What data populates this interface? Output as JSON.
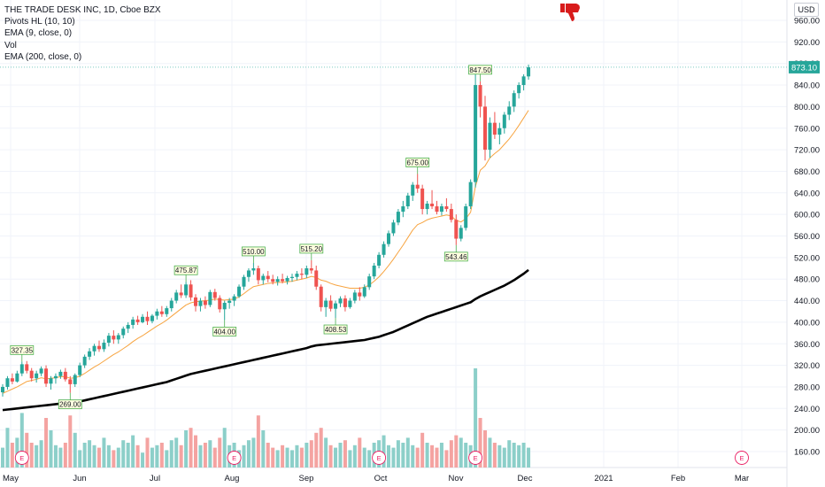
{
  "header": {
    "title": "THE TRADE DESK INC, 1D, Cboe BZX",
    "indicators": [
      "Pivots HL (10, 10)",
      "EMA (9, close, 0)",
      "Vol",
      "EMA (200, close, 0)"
    ],
    "currency": "USD"
  },
  "chart_data": {
    "type": "candlestick",
    "y_ticks": [
      "960.00",
      "920.00",
      "880.00",
      "840.00",
      "800.00",
      "760.00",
      "720.00",
      "680.00",
      "640.00",
      "600.00",
      "560.00",
      "520.00",
      "480.00",
      "440.00",
      "400.00",
      "360.00",
      "320.00",
      "280.00",
      "240.00",
      "200.00",
      "160.00"
    ],
    "ylim": [
      150,
      975
    ],
    "x_ticks": [
      "May",
      "Jun",
      "Jul",
      "Aug",
      "Sep",
      "Oct",
      "Nov",
      "Dec",
      "2021",
      "Feb",
      "Mar"
    ],
    "last_price": "873.10",
    "pivot_labels": [
      "327.35",
      "269.00",
      "475.87",
      "404.00",
      "510.00",
      "515.20",
      "408.53",
      "675.00",
      "543.46",
      "847.50"
    ],
    "earnings_marker": "E",
    "colors": {
      "up": "#26a69a",
      "down": "#ef5350",
      "ema9": "#f7a440",
      "ema200": "#000000",
      "vol_up": "#8ccfc9",
      "vol_down": "#f4a3a1"
    },
    "ohlc": [
      [
        270,
        285,
        262,
        280
      ],
      [
        280,
        300,
        275,
        296
      ],
      [
        296,
        305,
        285,
        290
      ],
      [
        290,
        310,
        288,
        305
      ],
      [
        305,
        327,
        300,
        322
      ],
      [
        322,
        328,
        305,
        310
      ],
      [
        310,
        315,
        290,
        296
      ],
      [
        296,
        310,
        288,
        305
      ],
      [
        305,
        318,
        300,
        314
      ],
      [
        314,
        320,
        280,
        286
      ],
      [
        286,
        300,
        275,
        296
      ],
      [
        296,
        305,
        286,
        300
      ],
      [
        300,
        312,
        295,
        308
      ],
      [
        308,
        315,
        290,
        294
      ],
      [
        294,
        300,
        269,
        285
      ],
      [
        285,
        305,
        280,
        302
      ],
      [
        302,
        325,
        298,
        320
      ],
      [
        320,
        340,
        315,
        336
      ],
      [
        336,
        352,
        330,
        346
      ],
      [
        346,
        360,
        338,
        356
      ],
      [
        356,
        366,
        345,
        350
      ],
      [
        350,
        368,
        345,
        362
      ],
      [
        362,
        380,
        355,
        375
      ],
      [
        375,
        385,
        360,
        368
      ],
      [
        368,
        380,
        360,
        376
      ],
      [
        376,
        392,
        370,
        388
      ],
      [
        388,
        400,
        380,
        395
      ],
      [
        395,
        410,
        388,
        405
      ],
      [
        405,
        412,
        395,
        400
      ],
      [
        400,
        415,
        398,
        410
      ],
      [
        410,
        420,
        395,
        402
      ],
      [
        402,
        415,
        398,
        412
      ],
      [
        412,
        425,
        405,
        420
      ],
      [
        420,
        430,
        410,
        415
      ],
      [
        415,
        430,
        410,
        426
      ],
      [
        426,
        445,
        420,
        440
      ],
      [
        440,
        460,
        435,
        455
      ],
      [
        455,
        470,
        445,
        450
      ],
      [
        450,
        475,
        445,
        470
      ],
      [
        470,
        478,
        440,
        446
      ],
      [
        446,
        452,
        420,
        430
      ],
      [
        430,
        445,
        420,
        440
      ],
      [
        440,
        448,
        425,
        432
      ],
      [
        432,
        460,
        428,
        456
      ],
      [
        456,
        462,
        440,
        445
      ],
      [
        445,
        450,
        418,
        424
      ],
      [
        424,
        440,
        404,
        436
      ],
      [
        436,
        445,
        425,
        440
      ],
      [
        440,
        452,
        430,
        448
      ],
      [
        448,
        470,
        445,
        466
      ],
      [
        466,
        488,
        460,
        484
      ],
      [
        484,
        500,
        475,
        496
      ],
      [
        496,
        510,
        488,
        500
      ],
      [
        500,
        505,
        470,
        478
      ],
      [
        478,
        490,
        470,
        486
      ],
      [
        486,
        495,
        474,
        480
      ],
      [
        480,
        488,
        470,
        475
      ],
      [
        475,
        485,
        468,
        480
      ],
      [
        480,
        490,
        472,
        476
      ],
      [
        476,
        486,
        470,
        482
      ],
      [
        482,
        490,
        475,
        484
      ],
      [
        484,
        495,
        478,
        490
      ],
      [
        490,
        500,
        480,
        488
      ],
      [
        488,
        505,
        482,
        500
      ],
      [
        500,
        515,
        490,
        496
      ],
      [
        496,
        505,
        460,
        466
      ],
      [
        466,
        470,
        420,
        428
      ],
      [
        428,
        445,
        410,
        440
      ],
      [
        440,
        450,
        420,
        425
      ],
      [
        425,
        440,
        408,
        435
      ],
      [
        435,
        448,
        428,
        444
      ],
      [
        444,
        450,
        420,
        428
      ],
      [
        428,
        445,
        425,
        440
      ],
      [
        440,
        460,
        435,
        455
      ],
      [
        455,
        465,
        440,
        448
      ],
      [
        448,
        470,
        445,
        465
      ],
      [
        465,
        490,
        460,
        485
      ],
      [
        485,
        510,
        480,
        505
      ],
      [
        505,
        530,
        500,
        525
      ],
      [
        525,
        550,
        520,
        545
      ],
      [
        545,
        570,
        540,
        565
      ],
      [
        565,
        590,
        560,
        585
      ],
      [
        585,
        610,
        580,
        605
      ],
      [
        605,
        625,
        595,
        615
      ],
      [
        615,
        640,
        610,
        635
      ],
      [
        635,
        660,
        625,
        655
      ],
      [
        655,
        675,
        640,
        648
      ],
      [
        648,
        655,
        600,
        610
      ],
      [
        610,
        625,
        600,
        620
      ],
      [
        620,
        645,
        610,
        615
      ],
      [
        615,
        625,
        600,
        605
      ],
      [
        605,
        620,
        598,
        615
      ],
      [
        615,
        630,
        605,
        610
      ],
      [
        610,
        620,
        585,
        590
      ],
      [
        590,
        600,
        543,
        555
      ],
      [
        555,
        580,
        550,
        575
      ],
      [
        575,
        620,
        570,
        615
      ],
      [
        615,
        665,
        610,
        660
      ],
      [
        660,
        860,
        650,
        840
      ],
      [
        840,
        847,
        780,
        800
      ],
      [
        800,
        820,
        700,
        720
      ],
      [
        720,
        780,
        705,
        770
      ],
      [
        770,
        790,
        740,
        748
      ],
      [
        748,
        770,
        730,
        760
      ],
      [
        760,
        790,
        750,
        785
      ],
      [
        785,
        810,
        775,
        800
      ],
      [
        800,
        830,
        790,
        825
      ],
      [
        825,
        845,
        815,
        840
      ],
      [
        840,
        860,
        830,
        856
      ],
      [
        856,
        878,
        850,
        873
      ]
    ],
    "ema9": [
      268,
      272,
      276,
      280,
      285,
      290,
      292,
      294,
      297,
      295,
      296,
      297,
      299,
      299,
      296,
      297,
      300,
      305,
      311,
      317,
      322,
      328,
      334,
      340,
      345,
      351,
      357,
      364,
      370,
      375,
      381,
      387,
      393,
      398,
      404,
      411,
      418,
      425,
      432,
      436,
      438,
      439,
      440,
      441,
      443,
      442,
      441,
      442,
      443,
      447,
      453,
      460,
      466,
      468,
      470,
      472,
      473,
      474,
      474,
      475,
      476,
      478,
      480,
      482,
      485,
      483,
      478,
      476,
      472,
      469,
      467,
      465,
      463,
      463,
      463,
      465,
      469,
      476,
      484,
      494,
      505,
      517,
      530,
      543,
      557,
      571,
      581,
      585,
      590,
      593,
      595,
      597,
      599,
      597,
      589,
      586,
      592,
      604,
      652,
      682,
      690,
      705,
      713,
      720,
      730,
      740,
      752,
      765,
      779,
      793
    ],
    "ema200": [
      237,
      238,
      239,
      240,
      241,
      242,
      243,
      244,
      245,
      246,
      247,
      248,
      249,
      250,
      251,
      252,
      253,
      255,
      257,
      259,
      261,
      263,
      265,
      267,
      269,
      271,
      273,
      275,
      277,
      279,
      281,
      283,
      285,
      287,
      289,
      292,
      295,
      298,
      301,
      304,
      306,
      308,
      310,
      312,
      314,
      316,
      318,
      320,
      322,
      324,
      326,
      328,
      330,
      332,
      334,
      336,
      338,
      340,
      342,
      344,
      346,
      348,
      350,
      352,
      355,
      357,
      358,
      359,
      360,
      361,
      362,
      363,
      364,
      365,
      366,
      367,
      369,
      371,
      373,
      376,
      379,
      382,
      386,
      390,
      394,
      398,
      402,
      406,
      410,
      413,
      416,
      419,
      422,
      425,
      428,
      431,
      434,
      437,
      443,
      448,
      452,
      456,
      460,
      464,
      468,
      473,
      478,
      484,
      490,
      497
    ],
    "volume": [
      8,
      16,
      10,
      12,
      22,
      14,
      10,
      9,
      11,
      20,
      15,
      9,
      8,
      10,
      21,
      14,
      7,
      10,
      11,
      9,
      8,
      12,
      9,
      7,
      8,
      11,
      10,
      13,
      9,
      6,
      12,
      8,
      9,
      10,
      7,
      11,
      12,
      9,
      15,
      16,
      13,
      9,
      10,
      11,
      8,
      12,
      16,
      9,
      10,
      7,
      9,
      11,
      12,
      21,
      15,
      10,
      8,
      7,
      9,
      8,
      7,
      9,
      8,
      10,
      11,
      14,
      16,
      12,
      9,
      8,
      10,
      11,
      7,
      9,
      12,
      8,
      7,
      10,
      11,
      13,
      9,
      8,
      11,
      10,
      12,
      9,
      8,
      14,
      10,
      9,
      8,
      10,
      7,
      11,
      13,
      12,
      10,
      9,
      40,
      20,
      15,
      12,
      10,
      9,
      8,
      11,
      10,
      9,
      10,
      8
    ],
    "pivots": [
      {
        "i": 4,
        "type": "high",
        "label": "327.35"
      },
      {
        "i": 14,
        "type": "low",
        "label": "269.00"
      },
      {
        "i": 38,
        "type": "high",
        "label": "475.87"
      },
      {
        "i": 46,
        "type": "low",
        "label": "404.00"
      },
      {
        "i": 52,
        "type": "high",
        "label": "510.00"
      },
      {
        "i": 64,
        "type": "high",
        "label": "515.20"
      },
      {
        "i": 69,
        "type": "low",
        "label": "408.53"
      },
      {
        "i": 86,
        "type": "high",
        "label": "675.00"
      },
      {
        "i": 94,
        "type": "low",
        "label": "543.46"
      },
      {
        "i": 99,
        "type": "high",
        "label": "847.50"
      }
    ],
    "earnings_index": [
      4,
      48,
      78,
      98
    ]
  }
}
